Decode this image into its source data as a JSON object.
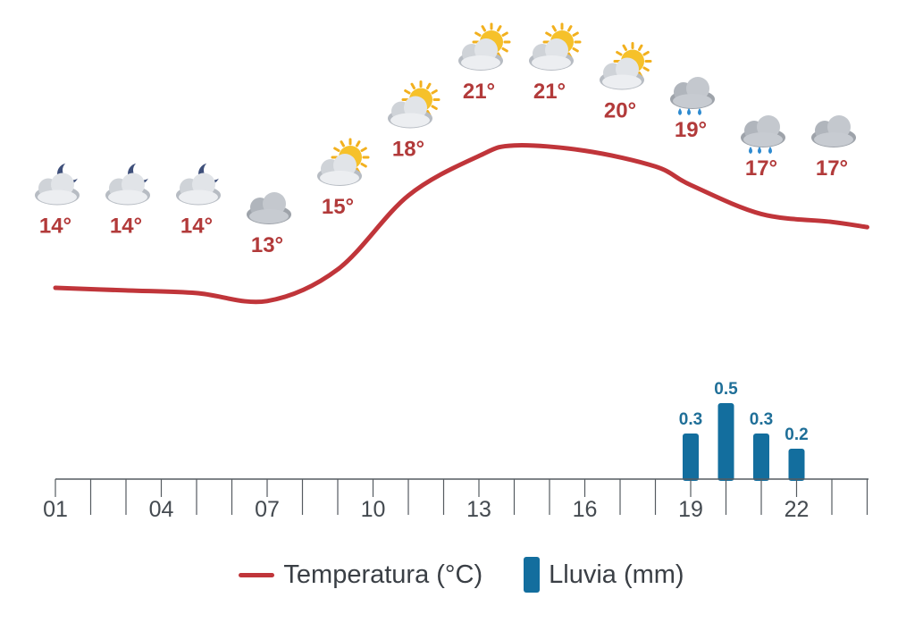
{
  "chart_data": {
    "type": "line",
    "hours": [
      "01",
      "02",
      "03",
      "04",
      "05",
      "06",
      "07",
      "08",
      "09",
      "10",
      "11",
      "12",
      "13",
      "14",
      "15",
      "16",
      "17",
      "18",
      "19",
      "20",
      "21",
      "22",
      "23",
      "24"
    ],
    "tick_labels": [
      "01",
      "04",
      "07",
      "10",
      "13",
      "16",
      "19",
      "22"
    ],
    "forecast_points": [
      {
        "hour": "01",
        "temp": 14,
        "temp_label": "14°",
        "icon": "moon-cloud-icon"
      },
      {
        "hour": "03",
        "temp": 14,
        "temp_label": "14°",
        "icon": "moon-cloud-icon"
      },
      {
        "hour": "05",
        "temp": 14,
        "temp_label": "14°",
        "icon": "moon-cloud-icon"
      },
      {
        "hour": "07",
        "temp": 13,
        "temp_label": "13°",
        "icon": "cloud-icon"
      },
      {
        "hour": "09",
        "temp": 15,
        "temp_label": "15°",
        "icon": "sun-cloud-icon"
      },
      {
        "hour": "11",
        "temp": 18,
        "temp_label": "18°",
        "icon": "sun-cloud-icon"
      },
      {
        "hour": "13",
        "temp": 21,
        "temp_label": "21°",
        "icon": "sun-cloud-icon"
      },
      {
        "hour": "15",
        "temp": 21,
        "temp_label": "21°",
        "icon": "sun-cloud-icon"
      },
      {
        "hour": "17",
        "temp": 20,
        "temp_label": "20°",
        "icon": "sun-cloud-icon"
      },
      {
        "hour": "19",
        "temp": 19,
        "temp_label": "19°",
        "icon": "rain-cloud-icon"
      },
      {
        "hour": "21",
        "temp": 17,
        "temp_label": "17°",
        "icon": "rain-cloud-icon"
      },
      {
        "hour": "23",
        "temp": 17,
        "temp_label": "17°",
        "icon": "cloud-icon"
      }
    ],
    "temperature_curve": [
      {
        "x": 1,
        "y": 13.0
      },
      {
        "x": 3,
        "y": 12.9
      },
      {
        "x": 5,
        "y": 12.8
      },
      {
        "x": 7,
        "y": 12.5
      },
      {
        "x": 9,
        "y": 13.7
      },
      {
        "x": 11,
        "y": 16.5
      },
      {
        "x": 13,
        "y": 18.0
      },
      {
        "x": 14,
        "y": 18.4
      },
      {
        "x": 16,
        "y": 18.2
      },
      {
        "x": 18,
        "y": 17.6
      },
      {
        "x": 19,
        "y": 16.9
      },
      {
        "x": 21,
        "y": 15.8
      },
      {
        "x": 23,
        "y": 15.5
      },
      {
        "x": 24,
        "y": 15.3
      }
    ],
    "rain": [
      {
        "hour": "19",
        "value": 0.3,
        "label": "0.3"
      },
      {
        "hour": "20",
        "value": 0.5,
        "label": "0.5"
      },
      {
        "hour": "21",
        "value": 0.3,
        "label": "0.3"
      },
      {
        "hour": "22",
        "value": 0.2,
        "label": "0.2"
      }
    ],
    "legend": {
      "temperature": "Temperatura (°C)",
      "rain": "Lluvia (mm)"
    },
    "colors": {
      "temperature": "#c0353a",
      "rain": "#136e9e",
      "temp_label": "#b23a3a",
      "rain_label": "#1f6f98",
      "axis": "#555b60"
    },
    "grid": false
  }
}
